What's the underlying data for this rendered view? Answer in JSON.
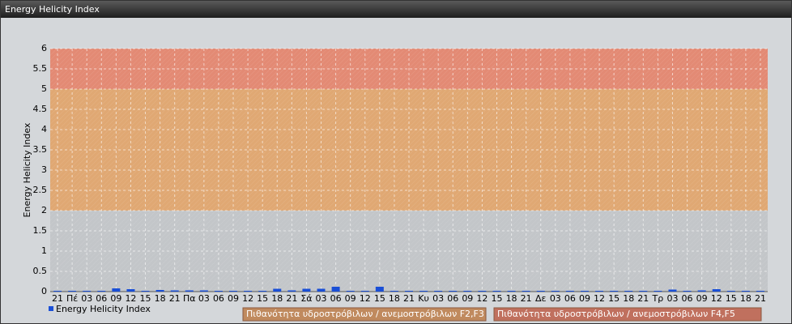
{
  "chart_data": {
    "type": "bar",
    "title": "Energy Helicity Index",
    "y_label": "Energy Helicity Index",
    "categories": [
      "21",
      "Πέ",
      "03",
      "06",
      "09",
      "12",
      "15",
      "18",
      "21",
      "Πα",
      "03",
      "06",
      "09",
      "12",
      "15",
      "18",
      "21",
      "Σά",
      "03",
      "06",
      "09",
      "12",
      "15",
      "18",
      "21",
      "Κυ",
      "03",
      "06",
      "09",
      "12",
      "15",
      "18",
      "21",
      "Δε",
      "03",
      "06",
      "09",
      "12",
      "15",
      "18",
      "21",
      "Τρ",
      "03",
      "06",
      "09",
      "12",
      "15",
      "18",
      "21"
    ],
    "series": [
      {
        "name": "Energy Helicity Index",
        "color": "#1a4fd6",
        "values": [
          0.02,
          0.02,
          0.02,
          0.02,
          0.08,
          0.06,
          0.02,
          0.04,
          0.03,
          0.03,
          0.03,
          0.02,
          0.02,
          0.02,
          0.02,
          0.07,
          0.03,
          0.07,
          0.07,
          0.12,
          0.02,
          0.02,
          0.12,
          0.02,
          0.02,
          0.02,
          0.02,
          0.02,
          0.02,
          0.02,
          0.02,
          0.02,
          0.02,
          0.02,
          0.02,
          0.02,
          0.02,
          0.02,
          0.02,
          0.02,
          0.02,
          0.02,
          0.05,
          0.02,
          0.03,
          0.06,
          0.02,
          0.02,
          0.02
        ]
      }
    ],
    "ylim": [
      0,
      6
    ],
    "yticks": [
      0,
      0.5,
      1,
      1.5,
      2,
      2.5,
      3,
      3.5,
      4,
      4.5,
      5,
      5.5,
      6
    ],
    "grid": true,
    "bands": [
      {
        "from": 0,
        "to": 2,
        "color": "#c3c6c9"
      },
      {
        "from": 2,
        "to": 5,
        "color": "#e0a873",
        "label": "Πιθανότητα υδροστρόβιλων / ανεμοστρόβιλων F2,F3",
        "legend_color": "#c08a5e"
      },
      {
        "from": 5,
        "to": 6,
        "color": "#e38a74",
        "label": "Πιθανότητα υδροστρόβιλων / ανεμοστρόβιλων F4,F5",
        "legend_color": "#c0705e"
      }
    ]
  }
}
